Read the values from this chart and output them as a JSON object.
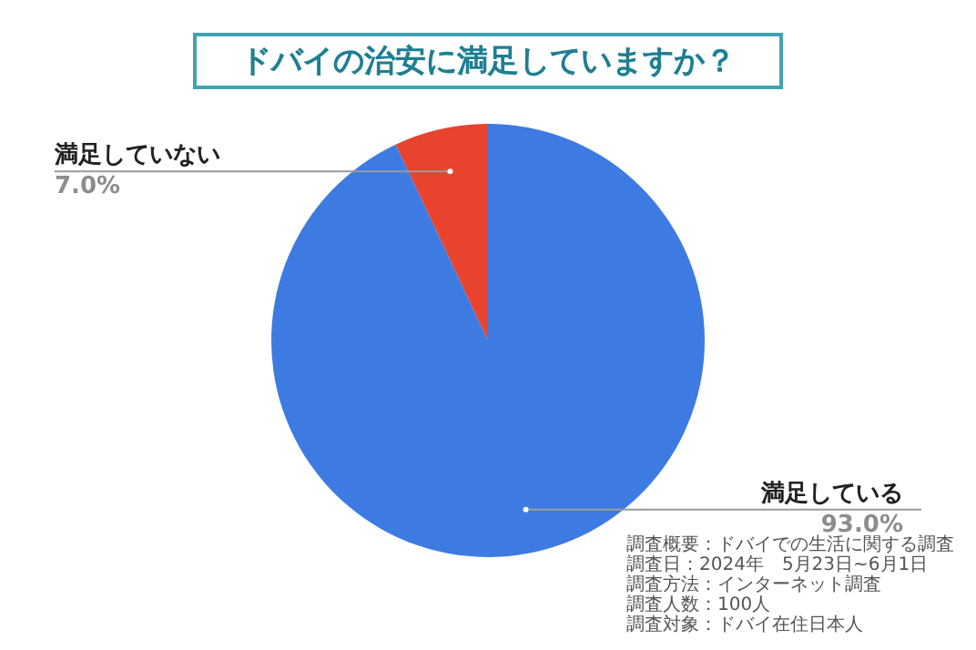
{
  "chart_data": {
    "type": "pie",
    "title": "ドバイの治安に満足していますか？",
    "categories": [
      "満足している",
      "満足していない"
    ],
    "values": [
      93,
      7
    ],
    "value_labels": [
      "93.0%",
      "7.0%"
    ],
    "colors": [
      "#3d7be3",
      "#e8432f"
    ],
    "legend": false,
    "annotations": [
      "調査概要：ドバイでの生活に関する調査",
      "調査日：2024年　5月23日~6月1日",
      "調査方法：インターネット調査",
      "調査人数：100人",
      "調査対象：ドバイ在住日本人"
    ]
  }
}
